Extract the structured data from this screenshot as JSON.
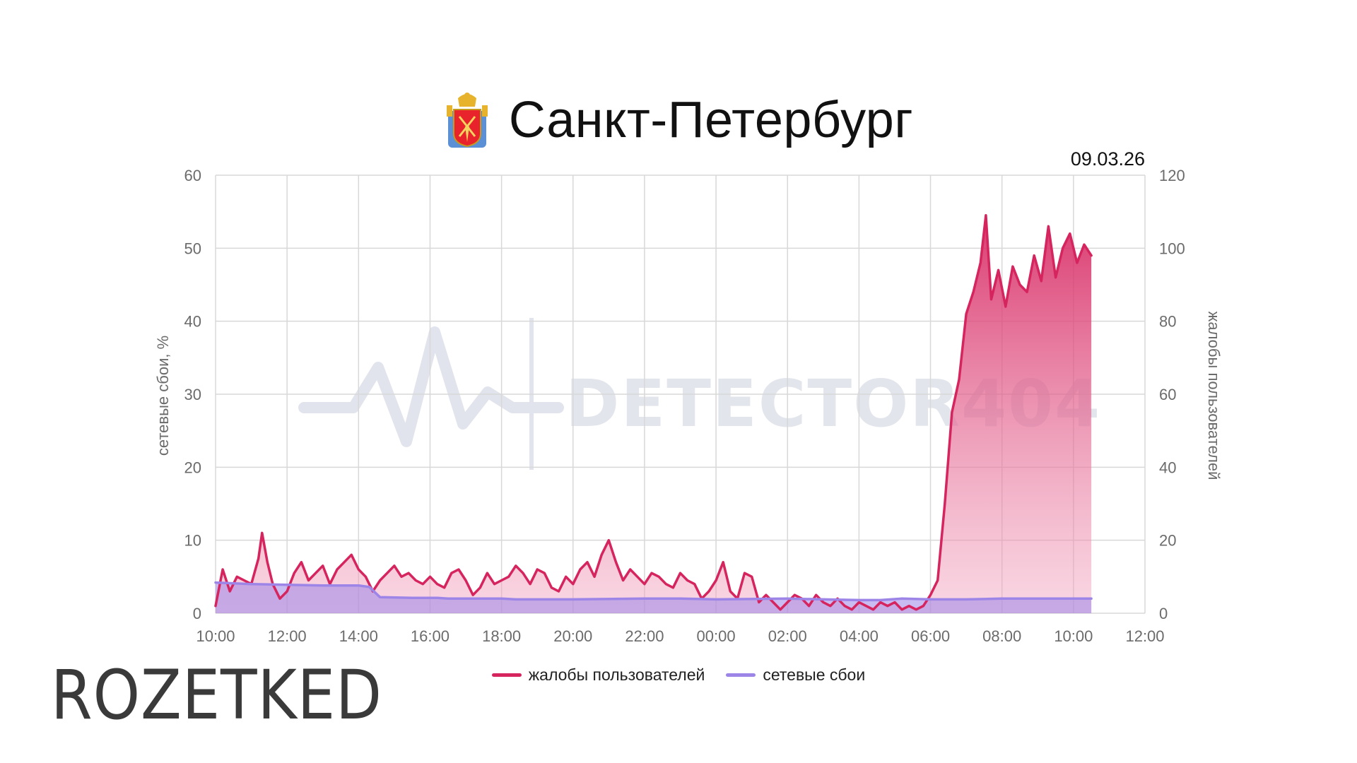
{
  "header": {
    "title": "Санкт-Петербург",
    "date": "09.03.26"
  },
  "logo": {
    "text": "ROZETKED"
  },
  "watermark": {
    "text": "DETECTOR404"
  },
  "colors": {
    "complaints": "#d6245f",
    "outages": "#9d85e8",
    "grid": "#d8d8d8"
  },
  "chart_data": {
    "type": "line",
    "title": "Санкт-Петербург",
    "left_axis": {
      "label": "сетевые сбои, %",
      "ylim": [
        0,
        60
      ],
      "ticks": [
        "60",
        "50",
        "40",
        "30",
        "20",
        "10",
        "0"
      ]
    },
    "right_axis": {
      "label": "жалобы пользователей",
      "ylim": [
        0,
        120
      ],
      "ticks": [
        "120",
        "100",
        "80",
        "60",
        "40",
        "20",
        "0"
      ]
    },
    "x_ticks": [
      "10:00",
      "12:00",
      "14:00",
      "16:00",
      "18:00",
      "20:00",
      "22:00",
      "00:00",
      "02:00",
      "04:00",
      "06:00",
      "08:00",
      "10:00",
      "12:00"
    ],
    "x_range_hours": [
      0,
      26
    ],
    "legend": {
      "placement": "bottom",
      "entries": [
        "жалобы пользователей",
        "сетевые сбои"
      ]
    },
    "series": [
      {
        "name": "жалобы пользователей",
        "axis": "right",
        "points": [
          [
            0,
            2
          ],
          [
            0.2,
            12
          ],
          [
            0.4,
            6
          ],
          [
            0.6,
            10
          ],
          [
            0.8,
            9
          ],
          [
            1.0,
            8
          ],
          [
            1.2,
            15
          ],
          [
            1.3,
            22
          ],
          [
            1.45,
            14
          ],
          [
            1.6,
            8
          ],
          [
            1.8,
            4
          ],
          [
            2.0,
            6
          ],
          [
            2.2,
            11
          ],
          [
            2.4,
            14
          ],
          [
            2.6,
            9
          ],
          [
            2.8,
            11
          ],
          [
            3.0,
            13
          ],
          [
            3.2,
            8
          ],
          [
            3.4,
            12
          ],
          [
            3.6,
            14
          ],
          [
            3.8,
            16
          ],
          [
            4.0,
            12
          ],
          [
            4.2,
            10
          ],
          [
            4.4,
            6
          ],
          [
            4.6,
            9
          ],
          [
            4.8,
            11
          ],
          [
            5.0,
            13
          ],
          [
            5.2,
            10
          ],
          [
            5.4,
            11
          ],
          [
            5.6,
            9
          ],
          [
            5.8,
            8
          ],
          [
            6.0,
            10
          ],
          [
            6.2,
            8
          ],
          [
            6.4,
            7
          ],
          [
            6.6,
            11
          ],
          [
            6.8,
            12
          ],
          [
            7.0,
            9
          ],
          [
            7.2,
            5
          ],
          [
            7.4,
            7
          ],
          [
            7.6,
            11
          ],
          [
            7.8,
            8
          ],
          [
            8.0,
            9
          ],
          [
            8.2,
            10
          ],
          [
            8.4,
            13
          ],
          [
            8.6,
            11
          ],
          [
            8.8,
            8
          ],
          [
            9.0,
            12
          ],
          [
            9.2,
            11
          ],
          [
            9.4,
            7
          ],
          [
            9.6,
            6
          ],
          [
            9.8,
            10
          ],
          [
            10.0,
            8
          ],
          [
            10.2,
            12
          ],
          [
            10.4,
            14
          ],
          [
            10.6,
            10
          ],
          [
            10.8,
            16
          ],
          [
            11.0,
            20
          ],
          [
            11.2,
            14
          ],
          [
            11.4,
            9
          ],
          [
            11.6,
            12
          ],
          [
            11.8,
            10
          ],
          [
            12.0,
            8
          ],
          [
            12.2,
            11
          ],
          [
            12.4,
            10
          ],
          [
            12.6,
            8
          ],
          [
            12.8,
            7
          ],
          [
            13.0,
            11
          ],
          [
            13.2,
            9
          ],
          [
            13.4,
            8
          ],
          [
            13.6,
            4
          ],
          [
            13.8,
            6
          ],
          [
            14.0,
            9
          ],
          [
            14.2,
            14
          ],
          [
            14.4,
            6
          ],
          [
            14.6,
            4
          ],
          [
            14.8,
            11
          ],
          [
            15.0,
            10
          ],
          [
            15.2,
            3
          ],
          [
            15.4,
            5
          ],
          [
            15.6,
            3
          ],
          [
            15.8,
            1
          ],
          [
            16.0,
            3
          ],
          [
            16.2,
            5
          ],
          [
            16.4,
            4
          ],
          [
            16.6,
            2
          ],
          [
            16.8,
            5
          ],
          [
            17.0,
            3
          ],
          [
            17.2,
            2
          ],
          [
            17.4,
            4
          ],
          [
            17.6,
            2
          ],
          [
            17.8,
            1
          ],
          [
            18.0,
            3
          ],
          [
            18.2,
            2
          ],
          [
            18.4,
            1
          ],
          [
            18.6,
            3
          ],
          [
            18.8,
            2
          ],
          [
            19.0,
            3
          ],
          [
            19.2,
            1
          ],
          [
            19.4,
            2
          ],
          [
            19.6,
            1
          ],
          [
            19.8,
            2
          ],
          [
            20.0,
            5
          ],
          [
            20.2,
            9
          ],
          [
            20.4,
            30
          ],
          [
            20.6,
            55
          ],
          [
            20.8,
            64
          ],
          [
            21.0,
            82
          ],
          [
            21.2,
            88
          ],
          [
            21.4,
            96
          ],
          [
            21.55,
            109
          ],
          [
            21.7,
            86
          ],
          [
            21.9,
            94
          ],
          [
            22.1,
            84
          ],
          [
            22.3,
            95
          ],
          [
            22.5,
            90
          ],
          [
            22.7,
            88
          ],
          [
            22.9,
            98
          ],
          [
            23.1,
            91
          ],
          [
            23.3,
            106
          ],
          [
            23.5,
            92
          ],
          [
            23.7,
            100
          ],
          [
            23.9,
            104
          ],
          [
            24.1,
            96
          ],
          [
            24.3,
            101
          ],
          [
            24.5,
            98
          ]
        ]
      },
      {
        "name": "сетевые сбои",
        "axis": "left",
        "points": [
          [
            0,
            4.2
          ],
          [
            1.0,
            4.0
          ],
          [
            2.0,
            3.9
          ],
          [
            3.0,
            3.8
          ],
          [
            4.0,
            3.8
          ],
          [
            4.3,
            3.6
          ],
          [
            4.6,
            2.2
          ],
          [
            5.5,
            2.1
          ],
          [
            6.2,
            2.1
          ],
          [
            6.5,
            2.0
          ],
          [
            8.0,
            2.0
          ],
          [
            8.4,
            1.9
          ],
          [
            10.0,
            1.9
          ],
          [
            12.0,
            2.0
          ],
          [
            13.0,
            2.0
          ],
          [
            14.0,
            1.9
          ],
          [
            16.0,
            2.0
          ],
          [
            17.0,
            1.9
          ],
          [
            18.0,
            1.8
          ],
          [
            18.6,
            1.8
          ],
          [
            19.2,
            2.0
          ],
          [
            20.0,
            1.9
          ],
          [
            21.0,
            1.9
          ],
          [
            22.0,
            2.0
          ],
          [
            23.0,
            2.0
          ],
          [
            24.0,
            2.0
          ],
          [
            24.5,
            2.0
          ]
        ]
      }
    ]
  }
}
